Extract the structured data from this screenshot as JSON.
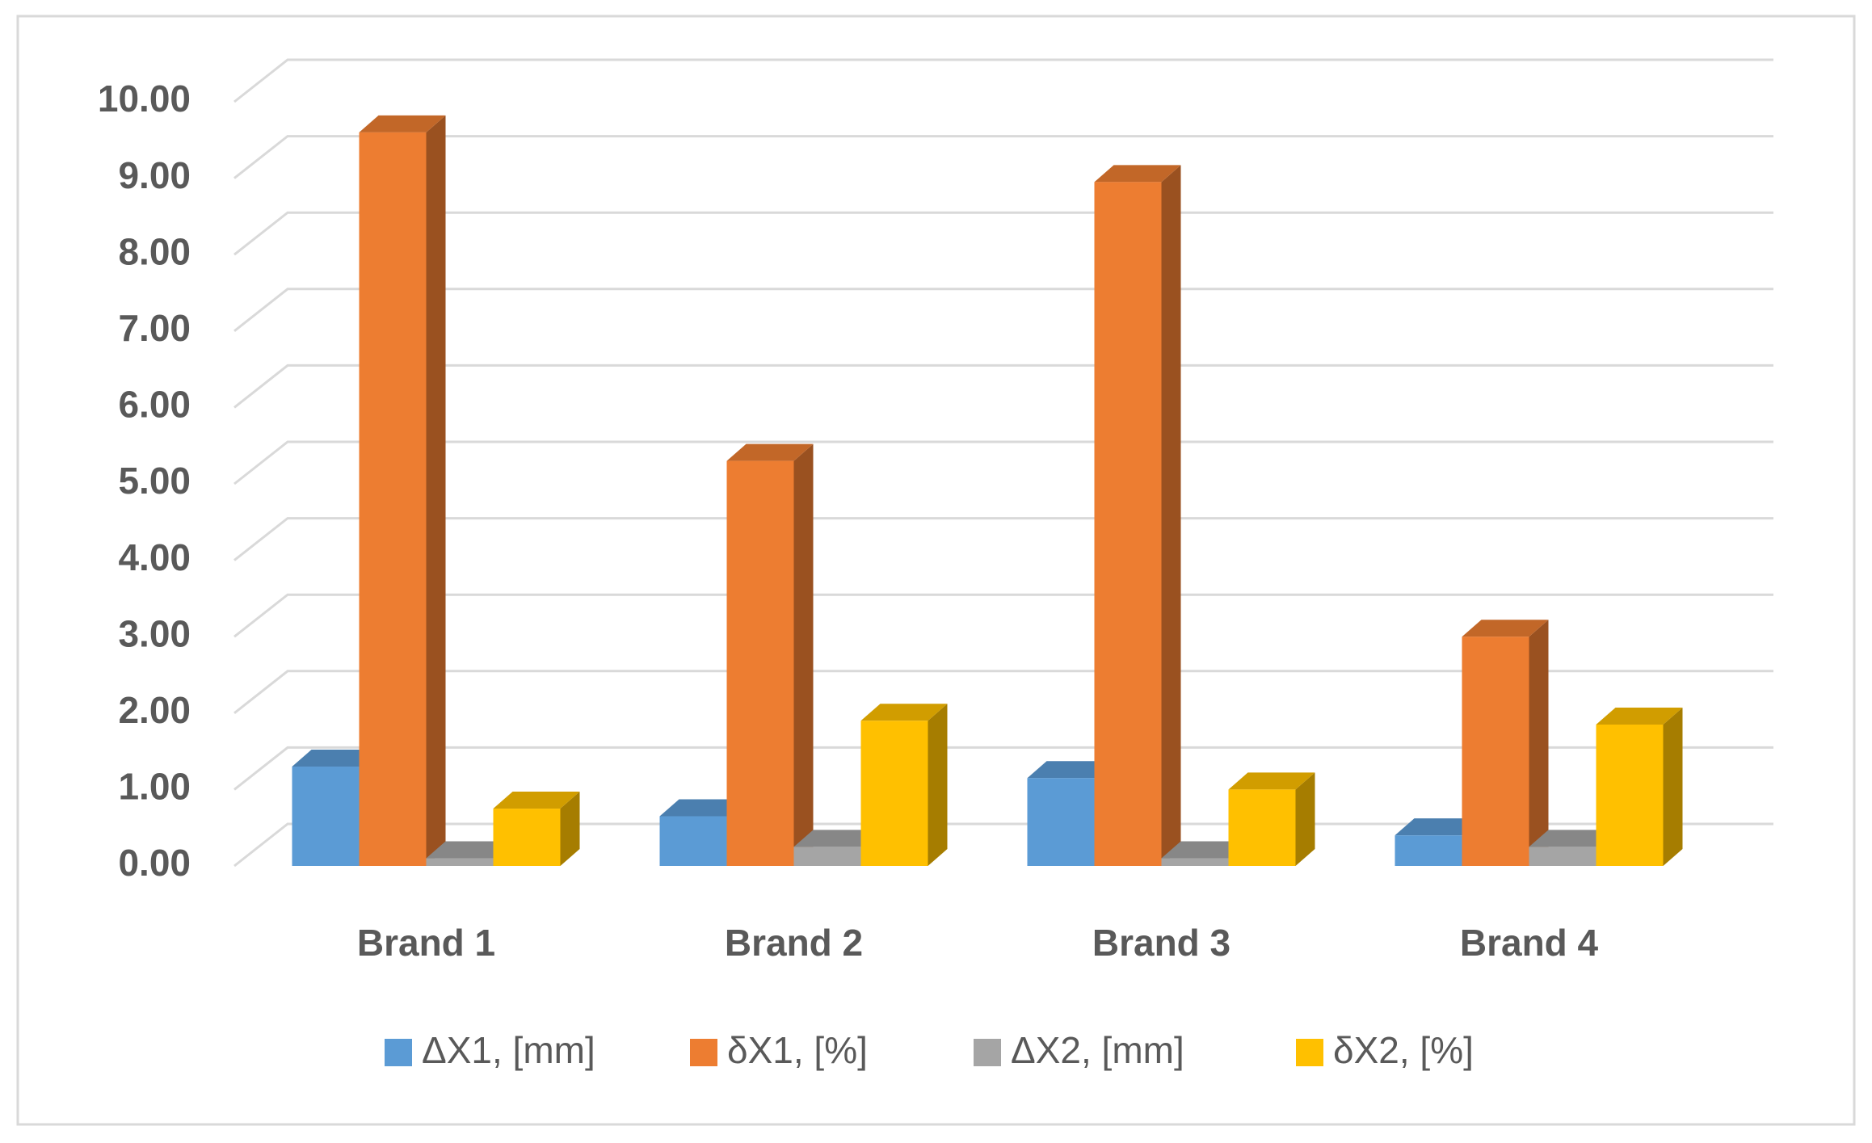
{
  "chart_data": {
    "type": "bar3d",
    "categories": [
      "Brand 1",
      "Brand 2",
      "Brand 3",
      "Brand 4"
    ],
    "series": [
      {
        "name": "ΔX1, [mm]",
        "color": "#5b9bd5",
        "values": [
          1.3,
          0.65,
          1.15,
          0.4
        ]
      },
      {
        "name": "δX1, [%]",
        "color": "#ed7d31",
        "values": [
          9.6,
          5.3,
          8.95,
          3.0
        ]
      },
      {
        "name": "ΔX2, [mm]",
        "color": "#a5a5a5",
        "values": [
          0.1,
          0.25,
          0.1,
          0.25
        ]
      },
      {
        "name": "δX2, [%]",
        "color": "#ffc000",
        "values": [
          0.75,
          1.9,
          1.0,
          1.85
        ]
      }
    ],
    "ylim": [
      0,
      10
    ],
    "yticks": [
      {
        "value": 0,
        "label": "0.00"
      },
      {
        "value": 1,
        "label": "1.00"
      },
      {
        "value": 2,
        "label": "2.00"
      },
      {
        "value": 3,
        "label": "3.00"
      },
      {
        "value": 4,
        "label": "4.00"
      },
      {
        "value": 5,
        "label": "5.00"
      },
      {
        "value": 6,
        "label": "6.00"
      },
      {
        "value": 7,
        "label": "7.00"
      },
      {
        "value": 8,
        "label": "8.00"
      },
      {
        "value": 9,
        "label": "9.00"
      },
      {
        "value": 10,
        "label": "10.00"
      }
    ],
    "grid": true,
    "legend": "bottom"
  }
}
